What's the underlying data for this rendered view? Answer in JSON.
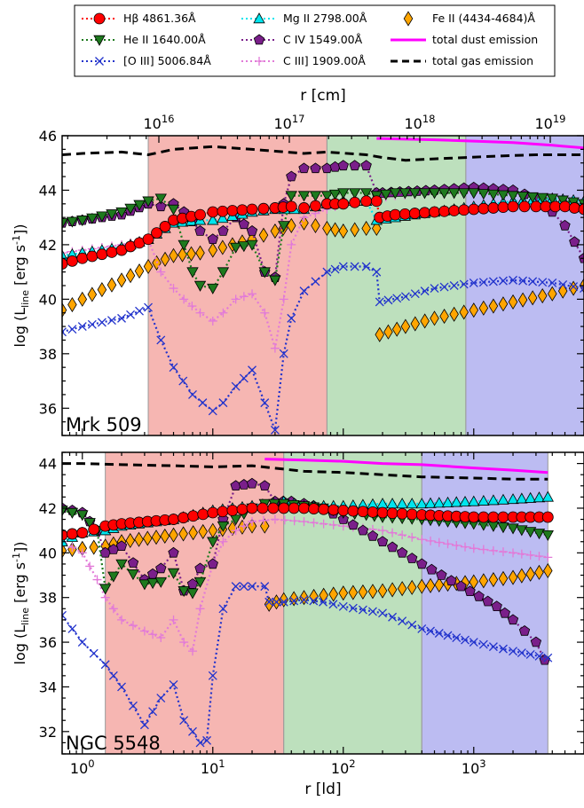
{
  "legend": {
    "entries": [
      {
        "key": "hb",
        "label": "Hβ 4861.36Å",
        "color": "#ff0000",
        "marker": "circle",
        "line": "dotted"
      },
      {
        "key": "heii",
        "label": "He II 1640.00Å",
        "color": "#1e7a1e",
        "marker": "tri-down",
        "line": "dotted"
      },
      {
        "key": "oiii",
        "label": "[O III] 5006.84Å",
        "color": "#2233cc",
        "marker": "x",
        "line": "dotted"
      },
      {
        "key": "mgii",
        "label": "Mg II 2798.00Å",
        "color": "#00e5ee",
        "marker": "tri-up",
        "line": "dotted"
      },
      {
        "key": "civ",
        "label": "C IV 1549.00Å",
        "color": "#7a1f8a",
        "marker": "pentagon",
        "line": "dotted"
      },
      {
        "key": "ciii",
        "label": "C III] 1909.00Å",
        "color": "#e27ad8",
        "marker": "plus",
        "line": "dotted"
      },
      {
        "key": "feii",
        "label": "Fe II (4434-4684)Å",
        "color": "#ffa500",
        "marker": "diamond",
        "line": "none"
      },
      {
        "key": "dust",
        "label": "total dust emission",
        "color": "#ff00ff",
        "marker": "none",
        "line": "solid"
      },
      {
        "key": "gas",
        "label": "total gas emission",
        "color": "#000000",
        "marker": "none",
        "line": "dashed"
      }
    ]
  },
  "colors": {
    "red_zone": "#f6b6b2",
    "green_zone": "#bde0bd",
    "blue_zone": "#bcbcf2"
  },
  "chart_data": [
    {
      "type": "line",
      "panel_label": "Mrk 509",
      "xlabel": "",
      "ylabel": "log (L_line [erg s^-1])",
      "x_scale": "log",
      "xlim": [
        0.7,
        7000
      ],
      "ylim": [
        35,
        46
      ],
      "yticks": [
        36,
        38,
        40,
        42,
        44,
        46
      ],
      "top_axis": {
        "label": "r [cm]",
        "ticks": [
          "10^16",
          "10^17",
          "10^18",
          "10^19"
        ],
        "tick_ld": [
          3.86,
          38.6,
          386,
          3860
        ]
      },
      "zones": [
        {
          "color": "red",
          "x0": 3.2,
          "x1": 75
        },
        {
          "color": "green",
          "x0": 75,
          "x1": 870
        },
        {
          "color": "blue",
          "x0": 870,
          "x1": 7000
        }
      ],
      "series": [
        {
          "name": "total gas emission",
          "key": "gas",
          "x": [
            0.7,
            1,
            2,
            3.2,
            5,
            10,
            20,
            50,
            75,
            150,
            200,
            300,
            500,
            870,
            1500,
            3000,
            7000
          ],
          "y": [
            45.3,
            45.35,
            45.4,
            45.3,
            45.5,
            45.6,
            45.5,
            45.35,
            45.4,
            45.3,
            45.2,
            45.1,
            45.15,
            45.2,
            45.25,
            45.3,
            45.3
          ]
        },
        {
          "name": "total dust emission",
          "key": "dust",
          "x": [
            180,
            500,
            1000,
            2000,
            4000,
            7000
          ],
          "y": [
            45.9,
            45.85,
            45.8,
            45.75,
            45.65,
            45.55
          ]
        },
        {
          "name": "Hβ 4861.36Å",
          "key": "hb",
          "x": [
            0.7,
            1,
            2,
            3.2,
            5,
            8,
            10,
            20,
            30,
            40,
            50,
            75,
            100,
            150,
            180,
            190,
            250,
            500,
            1000,
            2000,
            3000,
            5000,
            7000
          ],
          "y": [
            41.3,
            41.5,
            41.8,
            42.2,
            42.9,
            43.1,
            43.2,
            43.3,
            43.35,
            43.4,
            43.35,
            43.5,
            43.5,
            43.6,
            43.6,
            43.0,
            43.1,
            43.2,
            43.3,
            43.4,
            43.4,
            43.4,
            43.3
          ]
        },
        {
          "name": "He II 1640.00Å",
          "key": "heii",
          "x": [
            0.7,
            1,
            2,
            3.2,
            4,
            5,
            6,
            7,
            8,
            10,
            12,
            15,
            20,
            25,
            30,
            35,
            40,
            50,
            75,
            100,
            150,
            180,
            250,
            500,
            1000,
            2000,
            4000,
            7000
          ],
          "y": [
            42.8,
            42.9,
            43.2,
            43.6,
            43.7,
            43.3,
            42.0,
            41.0,
            40.5,
            40.4,
            41.0,
            41.9,
            42.0,
            41.0,
            40.7,
            42.7,
            43.8,
            43.8,
            43.8,
            43.9,
            43.9,
            43.8,
            43.9,
            43.9,
            43.9,
            43.8,
            43.7,
            43.5
          ]
        },
        {
          "name": "[O III] 5006.84Å",
          "key": "oiii",
          "x": [
            0.7,
            1,
            2,
            3.2,
            4,
            5,
            7,
            10,
            12,
            15,
            20,
            25,
            30,
            35,
            40,
            50,
            75,
            100,
            150,
            180,
            190,
            300,
            500,
            1000,
            2000,
            4000,
            7000
          ],
          "y": [
            38.8,
            39.0,
            39.3,
            39.7,
            38.5,
            37.5,
            36.5,
            35.9,
            36.2,
            36.8,
            37.4,
            36.2,
            35.2,
            38.0,
            39.3,
            40.3,
            41.0,
            41.2,
            41.2,
            41.0,
            39.9,
            40.1,
            40.4,
            40.6,
            40.7,
            40.6,
            40.4
          ]
        },
        {
          "name": "Mg II 2798.00Å",
          "key": "mgii",
          "x": [
            0.7,
            1,
            2,
            3.2,
            5,
            8,
            10,
            20,
            30,
            50,
            75,
            100,
            150,
            180,
            250,
            500,
            1000,
            2000,
            4000,
            7000
          ],
          "y": [
            41.6,
            41.7,
            41.9,
            42.2,
            42.8,
            42.9,
            42.9,
            43.2,
            43.3,
            43.3,
            43.5,
            43.6,
            43.6,
            42.9,
            43.0,
            43.2,
            43.4,
            43.6,
            43.7,
            43.6
          ]
        },
        {
          "name": "C IV 1549.00Å",
          "key": "civ",
          "x": [
            0.7,
            1,
            2,
            3.2,
            4,
            5,
            6,
            8,
            10,
            12,
            15,
            20,
            25,
            30,
            35,
            40,
            50,
            75,
            100,
            150,
            180,
            200,
            500,
            1000,
            2000,
            3000,
            4000,
            5000,
            7000
          ],
          "y": [
            42.8,
            42.9,
            43.1,
            43.5,
            43.4,
            43.5,
            43.2,
            42.5,
            42.2,
            42.5,
            43.0,
            42.5,
            41.0,
            40.8,
            43.5,
            44.5,
            44.8,
            44.8,
            44.9,
            44.9,
            43.9,
            43.9,
            44.0,
            44.1,
            44.0,
            43.7,
            43.2,
            42.7,
            41.5
          ]
        },
        {
          "name": "C III] 1909.00Å",
          "key": "ciii",
          "x": [
            0.7,
            1,
            2,
            3.2,
            4,
            5,
            6,
            8,
            10,
            12,
            15,
            20,
            25,
            30,
            35,
            40,
            50,
            75,
            100,
            150,
            180,
            250,
            500,
            1000,
            2000,
            4000,
            7000
          ],
          "y": [
            41.7,
            41.8,
            42.0,
            42.2,
            41.0,
            40.4,
            40.0,
            39.5,
            39.2,
            39.5,
            40.0,
            40.2,
            39.5,
            38.2,
            40.0,
            42.0,
            43.0,
            43.3,
            43.5,
            43.6,
            43.7,
            43.8,
            43.9,
            43.9,
            43.9,
            43.6,
            43.4
          ]
        },
        {
          "name": "Fe II (4434-4684)Å",
          "key": "feii",
          "x": [
            0.7,
            1,
            2,
            3.2,
            5,
            8,
            10,
            20,
            30,
            40,
            50,
            75,
            100,
            150,
            180,
            190,
            300,
            500,
            1000,
            2000,
            4000,
            7000
          ],
          "y": [
            39.6,
            40.0,
            40.7,
            41.2,
            41.6,
            41.7,
            41.8,
            42.2,
            42.5,
            42.7,
            42.8,
            42.6,
            42.5,
            42.6,
            42.6,
            38.7,
            39.0,
            39.3,
            39.6,
            39.9,
            40.2,
            40.5
          ]
        }
      ]
    },
    {
      "type": "line",
      "panel_label": "NGC 5548",
      "xlabel": "r [ld]",
      "ylabel": "log (L_line [erg s^-1])",
      "x_scale": "log",
      "xlim": [
        0.7,
        7000
      ],
      "ylim": [
        31,
        44.5
      ],
      "yticks": [
        32,
        34,
        36,
        38,
        40,
        42,
        44
      ],
      "xticks": [
        {
          "label": "10^0",
          "value": 1
        },
        {
          "label": "10^1",
          "value": 10
        },
        {
          "label": "10^2",
          "value": 100
        },
        {
          "label": "10^3",
          "value": 1000
        }
      ],
      "zones": [
        {
          "color": "red",
          "x0": 1.5,
          "x1": 35
        },
        {
          "color": "green",
          "x0": 35,
          "x1": 400
        },
        {
          "color": "blue",
          "x0": 400,
          "x1": 3700
        }
      ],
      "series": [
        {
          "name": "total gas emission",
          "key": "gas",
          "x": [
            0.7,
            1,
            2,
            5,
            10,
            20,
            35,
            50,
            100,
            200,
            400,
            1000,
            2000,
            3700
          ],
          "y": [
            44.0,
            44.0,
            43.95,
            43.9,
            43.85,
            43.9,
            43.75,
            43.65,
            43.6,
            43.5,
            43.4,
            43.35,
            43.3,
            43.3
          ]
        },
        {
          "name": "total dust emission",
          "key": "dust",
          "x": [
            25,
            50,
            100,
            200,
            400,
            1000,
            2000,
            3700
          ],
          "y": [
            44.2,
            44.15,
            44.1,
            44.0,
            43.95,
            43.8,
            43.7,
            43.6
          ]
        },
        {
          "name": "Hβ 4861.36Å",
          "key": "hb",
          "x": [
            0.7,
            1,
            1.5,
            2,
            5,
            10,
            20,
            35,
            50,
            100,
            200,
            400,
            1000,
            2000,
            3700
          ],
          "y": [
            40.8,
            40.9,
            41.2,
            41.3,
            41.5,
            41.8,
            42.0,
            42.0,
            42.0,
            41.9,
            41.8,
            41.7,
            41.6,
            41.6,
            41.6
          ]
        },
        {
          "name": "He II 1640.00Å",
          "key": "heii",
          "x": [
            0.7,
            1,
            1.3,
            1.5,
            2,
            3,
            4,
            5,
            6,
            7,
            8,
            10,
            12,
            15,
            20,
            25,
            35,
            50,
            70,
            100,
            150,
            200,
            400,
            1000,
            2000,
            3700
          ],
          "y": [
            41.9,
            41.7,
            41.0,
            38.4,
            39.5,
            38.6,
            38.7,
            39.1,
            38.3,
            38.2,
            38.7,
            40.5,
            41.2,
            41.5,
            42.0,
            42.2,
            42.2,
            42.1,
            42.0,
            41.8,
            41.7,
            41.6,
            41.5,
            41.3,
            41.1,
            40.8
          ]
        },
        {
          "name": "[O III] 5006.84Å",
          "key": "oiii",
          "x": [
            0.7,
            1,
            1.5,
            2,
            3,
            4,
            5,
            6,
            7,
            8,
            9,
            10,
            12,
            15,
            20,
            25,
            27,
            35,
            50,
            70,
            100,
            200,
            400,
            1000,
            2000,
            3700
          ],
          "y": [
            37.2,
            36.0,
            35.0,
            34.0,
            32.3,
            33.5,
            34.1,
            32.5,
            32.0,
            31.5,
            31.6,
            34.5,
            37.5,
            38.5,
            38.5,
            38.5,
            37.8,
            37.8,
            37.9,
            37.8,
            37.6,
            37.3,
            36.6,
            36.0,
            35.6,
            35.3
          ]
        },
        {
          "name": "Mg II 2798.00Å",
          "key": "mgii",
          "x": [
            0.7,
            1,
            1.5,
            2,
            5,
            10,
            20,
            35,
            50,
            100,
            200,
            400,
            1000,
            2000,
            3700
          ],
          "y": [
            40.5,
            40.9,
            41.0,
            41.2,
            41.5,
            41.9,
            42.1,
            42.3,
            42.1,
            42.1,
            42.2,
            42.2,
            42.3,
            42.4,
            42.5
          ]
        },
        {
          "name": "C IV 1549.00Å",
          "key": "civ",
          "x": [
            0.7,
            1,
            1.3,
            1.5,
            2,
            3,
            4,
            5,
            6,
            7,
            8,
            10,
            12,
            15,
            20,
            25,
            30,
            40,
            50,
            70,
            100,
            200,
            400,
            800,
            1500,
            2000,
            3000,
            3500
          ],
          "y": [
            42.0,
            41.8,
            41.0,
            40.0,
            40.3,
            38.8,
            39.3,
            40.0,
            38.3,
            38.6,
            39.3,
            39.5,
            41.5,
            43.0,
            43.1,
            43.0,
            42.3,
            42.3,
            42.2,
            42.0,
            41.5,
            40.5,
            39.5,
            38.5,
            37.6,
            37.0,
            36.0,
            35.2
          ]
        },
        {
          "name": "C III] 1909.00Å",
          "key": "ciii",
          "x": [
            0.7,
            1,
            1.3,
            1.5,
            2,
            3,
            4,
            5,
            6,
            7,
            8,
            10,
            12,
            15,
            20,
            30,
            50,
            100,
            200,
            400,
            1000,
            2000,
            3700
          ],
          "y": [
            40.5,
            40.0,
            38.8,
            38.0,
            37.0,
            36.5,
            36.2,
            37.0,
            36.0,
            35.6,
            37.5,
            39.5,
            40.5,
            41.0,
            41.4,
            41.5,
            41.4,
            41.2,
            41.0,
            40.6,
            40.2,
            40.0,
            39.8
          ]
        },
        {
          "name": "Fe II (4434-4684)Å",
          "key": "feii",
          "x": [
            0.7,
            1,
            1.5,
            2,
            5,
            10,
            20,
            25,
            27,
            35,
            50,
            100,
            200,
            400,
            1000,
            2000,
            3700
          ],
          "y": [
            40.1,
            40.2,
            40.3,
            40.5,
            40.8,
            41.0,
            41.2,
            41.2,
            37.7,
            37.9,
            38.0,
            38.2,
            38.3,
            38.5,
            38.7,
            38.9,
            39.2
          ]
        }
      ]
    }
  ]
}
